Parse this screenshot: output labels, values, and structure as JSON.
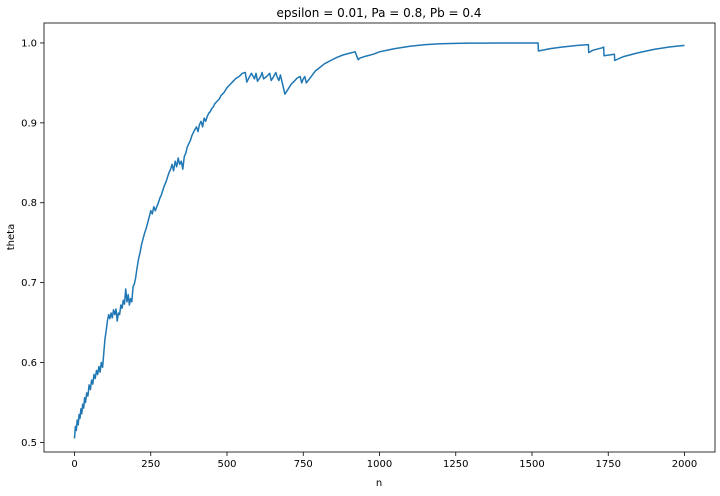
{
  "chart_data": {
    "type": "line",
    "title": "epsilon = 0.01, Pa = 0.8, Pb = 0.4",
    "xlabel": "n",
    "ylabel": "theta",
    "xlim": [
      -100,
      2100
    ],
    "ylim": [
      0.488,
      1.025
    ],
    "xticks": [
      0,
      250,
      500,
      750,
      1000,
      1250,
      1500,
      1750,
      2000
    ],
    "xtick_labels": [
      "0",
      "250",
      "500",
      "750",
      "1000",
      "1250",
      "1500",
      "1750",
      "2000"
    ],
    "yticks": [
      0.5,
      0.6,
      0.7,
      0.8,
      0.9,
      1.0
    ],
    "ytick_labels": [
      "0.5",
      "0.6",
      "0.7",
      "0.8",
      "0.9",
      "1.0"
    ],
    "grid": false,
    "series": [
      {
        "color": "#1f77b4",
        "x": [
          0,
          3,
          6,
          9,
          12,
          15,
          18,
          21,
          24,
          27,
          30,
          33,
          36,
          40,
          44,
          48,
          52,
          56,
          60,
          64,
          68,
          72,
          76,
          80,
          84,
          88,
          92,
          96,
          100,
          104,
          108,
          112,
          116,
          120,
          124,
          128,
          132,
          136,
          140,
          144,
          148,
          152,
          156,
          160,
          164,
          168,
          172,
          176,
          180,
          184,
          188,
          192,
          196,
          200,
          205,
          210,
          215,
          220,
          225,
          230,
          235,
          240,
          245,
          250,
          255,
          260,
          265,
          270,
          275,
          280,
          285,
          290,
          295,
          300,
          305,
          310,
          315,
          320,
          325,
          330,
          335,
          340,
          345,
          350,
          355,
          360,
          365,
          370,
          375,
          380,
          385,
          390,
          395,
          400,
          405,
          410,
          415,
          420,
          425,
          430,
          435,
          440,
          445,
          450,
          455,
          460,
          465,
          470,
          475,
          480,
          490,
          500,
          510,
          520,
          530,
          540,
          550,
          560,
          565,
          570,
          580,
          590,
          595,
          600,
          610,
          615,
          620,
          630,
          640,
          645,
          650,
          660,
          665,
          670,
          675,
          690,
          700,
          710,
          720,
          730,
          740,
          745,
          750,
          755,
          760,
          770,
          780,
          790,
          800,
          820,
          840,
          860,
          880,
          900,
          920,
          930,
          935,
          950,
          980,
          1000,
          1050,
          1100,
          1150,
          1200,
          1250,
          1300,
          1350,
          1400,
          1450,
          1500,
          1520,
          1521,
          1560,
          1600,
          1650,
          1685,
          1686,
          1700,
          1730,
          1735,
          1736,
          1770,
          1771,
          1800,
          1850,
          1900,
          1950,
          2000
        ],
        "values": [
          0.505,
          0.52,
          0.515,
          0.528,
          0.522,
          0.535,
          0.53,
          0.542,
          0.536,
          0.548,
          0.543,
          0.556,
          0.55,
          0.562,
          0.558,
          0.572,
          0.566,
          0.578,
          0.573,
          0.585,
          0.58,
          0.59,
          0.585,
          0.595,
          0.588,
          0.6,
          0.594,
          0.612,
          0.63,
          0.64,
          0.652,
          0.66,
          0.655,
          0.662,
          0.656,
          0.666,
          0.66,
          0.667,
          0.652,
          0.662,
          0.66,
          0.672,
          0.668,
          0.678,
          0.673,
          0.692,
          0.676,
          0.685,
          0.672,
          0.68,
          0.676,
          0.695,
          0.698,
          0.705,
          0.718,
          0.73,
          0.738,
          0.748,
          0.755,
          0.762,
          0.768,
          0.775,
          0.782,
          0.79,
          0.786,
          0.795,
          0.79,
          0.795,
          0.8,
          0.806,
          0.81,
          0.816,
          0.822,
          0.826,
          0.832,
          0.838,
          0.842,
          0.848,
          0.84,
          0.852,
          0.845,
          0.856,
          0.848,
          0.852,
          0.842,
          0.858,
          0.862,
          0.87,
          0.874,
          0.878,
          0.884,
          0.888,
          0.892,
          0.895,
          0.889,
          0.898,
          0.902,
          0.895,
          0.906,
          0.902,
          0.908,
          0.912,
          0.914,
          0.918,
          0.92,
          0.924,
          0.926,
          0.928,
          0.93,
          0.934,
          0.938,
          0.944,
          0.948,
          0.952,
          0.956,
          0.958,
          0.962,
          0.963,
          0.951,
          0.955,
          0.962,
          0.955,
          0.962,
          0.952,
          0.958,
          0.963,
          0.955,
          0.958,
          0.962,
          0.953,
          0.956,
          0.963,
          0.957,
          0.953,
          0.96,
          0.936,
          0.942,
          0.948,
          0.952,
          0.956,
          0.958,
          0.95,
          0.955,
          0.958,
          0.95,
          0.955,
          0.96,
          0.965,
          0.968,
          0.974,
          0.978,
          0.982,
          0.985,
          0.987,
          0.989,
          0.979,
          0.981,
          0.983,
          0.986,
          0.989,
          0.993,
          0.996,
          0.998,
          0.999,
          0.9995,
          0.9998,
          0.9999,
          1.0,
          1.0,
          1.0,
          1.0,
          0.99,
          0.993,
          0.995,
          0.997,
          0.998,
          0.988,
          0.991,
          0.994,
          0.995,
          0.984,
          0.986,
          0.978,
          0.983,
          0.988,
          0.992,
          0.995,
          0.997
        ]
      }
    ]
  }
}
